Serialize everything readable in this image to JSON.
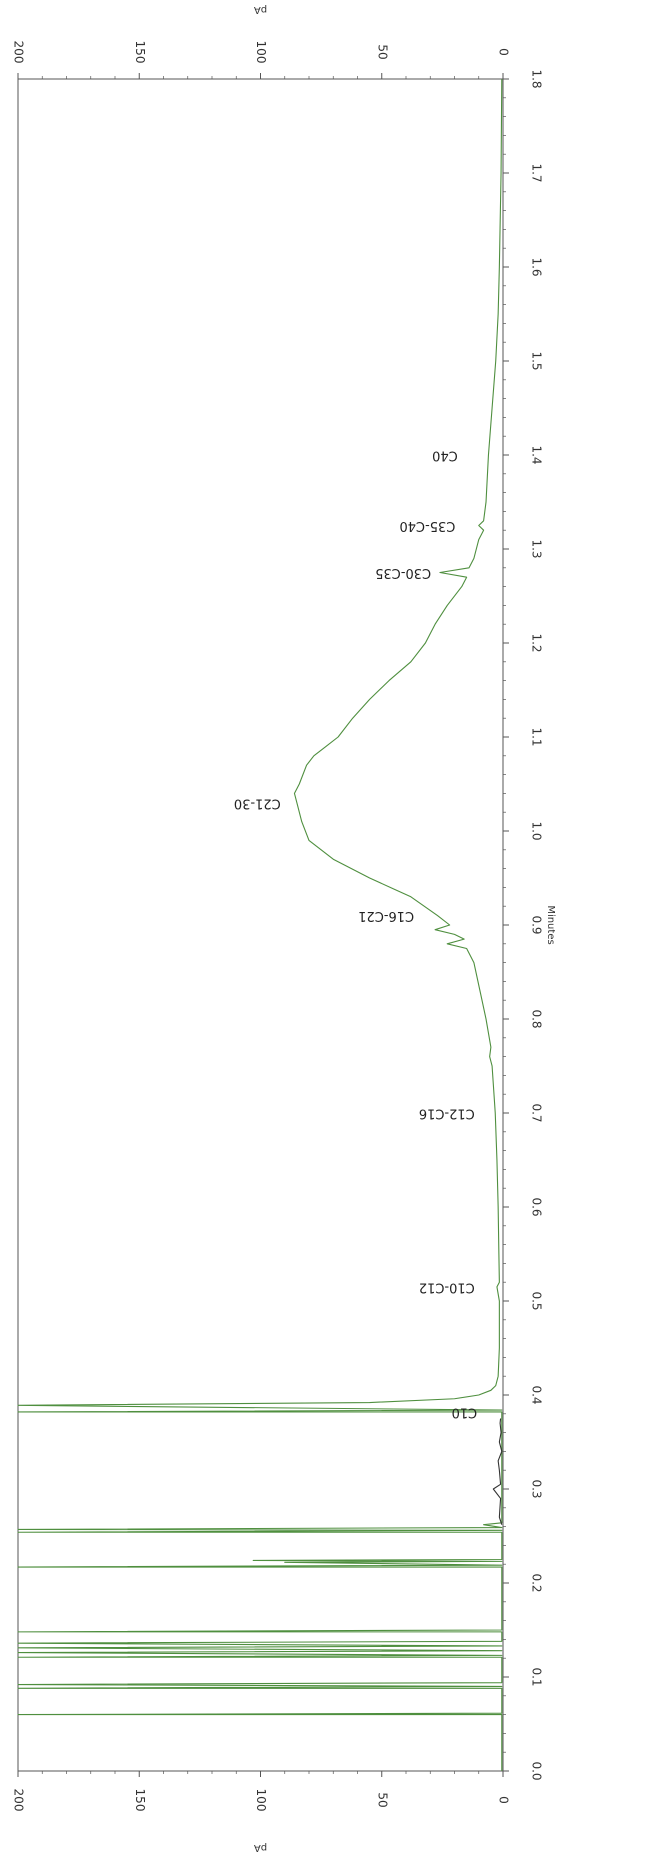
{
  "chart_data": {
    "type": "line",
    "orientation": "rotated-90-clockwise",
    "xlabel": "Minutes",
    "ylabel": "pA",
    "xlim": [
      0.0,
      1.8
    ],
    "ylim": [
      0,
      200
    ],
    "x_ticks": [
      "0.0",
      "0.1",
      "0.2",
      "0.3",
      "0.4",
      "0.5",
      "0.6",
      "0.7",
      "0.8",
      "0.9",
      "1.0",
      "1.1",
      "1.2",
      "1.3",
      "1.4",
      "1.5",
      "1.6",
      "1.7",
      "1.8"
    ],
    "y_ticks": [
      "0",
      "50",
      "100",
      "150",
      "200"
    ],
    "grid": false,
    "colors": {
      "trace": "#4f8f3f",
      "baseline": "#333333",
      "axis": "#555555"
    },
    "series": [
      {
        "color": "#4f8f3f",
        "points": [
          [
            0.0,
            0.5
          ],
          [
            0.06,
            0.5
          ],
          [
            0.06,
            200
          ],
          [
            0.0615,
            0.5
          ],
          [
            0.088,
            0.5
          ],
          [
            0.088,
            200
          ],
          [
            0.09,
            0.5
          ],
          [
            0.092,
            200
          ],
          [
            0.094,
            0.5
          ],
          [
            0.121,
            0.5
          ],
          [
            0.121,
            200
          ],
          [
            0.123,
            0.5
          ],
          [
            0.126,
            200
          ],
          [
            0.128,
            0.5
          ],
          [
            0.131,
            200
          ],
          [
            0.133,
            0.5
          ],
          [
            0.136,
            200
          ],
          [
            0.138,
            0.5
          ],
          [
            0.148,
            0.5
          ],
          [
            0.148,
            200
          ],
          [
            0.15,
            0.5
          ],
          [
            0.217,
            0.5
          ],
          [
            0.217,
            200
          ],
          [
            0.219,
            0.5
          ],
          [
            0.222,
            90
          ],
          [
            0.223,
            0.5
          ],
          [
            0.224,
            103
          ],
          [
            0.225,
            0.5
          ],
          [
            0.254,
            0.5
          ],
          [
            0.254,
            200
          ],
          [
            0.256,
            0.5
          ],
          [
            0.257,
            200
          ],
          [
            0.259,
            0.5
          ],
          [
            0.262,
            8
          ],
          [
            0.264,
            0.5
          ],
          [
            0.382,
            0.5
          ],
          [
            0.382,
            200
          ],
          [
            0.384,
            0.5
          ],
          [
            0.389,
            200
          ],
          [
            0.392,
            55
          ],
          [
            0.396,
            20
          ],
          [
            0.4,
            10
          ],
          [
            0.405,
            5
          ],
          [
            0.41,
            3
          ],
          [
            0.42,
            2
          ],
          [
            0.45,
            1.5
          ],
          [
            0.5,
            1.5
          ],
          [
            0.515,
            2.5
          ],
          [
            0.52,
            1.5
          ],
          [
            0.55,
            1.7
          ],
          [
            0.6,
            2
          ],
          [
            0.65,
            2.5
          ],
          [
            0.7,
            3.2
          ],
          [
            0.75,
            4.5
          ],
          [
            0.76,
            5.5
          ],
          [
            0.77,
            5
          ],
          [
            0.8,
            7
          ],
          [
            0.83,
            9.5
          ],
          [
            0.86,
            12
          ],
          [
            0.875,
            15
          ],
          [
            0.88,
            23
          ],
          [
            0.885,
            16
          ],
          [
            0.89,
            20
          ],
          [
            0.895,
            28
          ],
          [
            0.9,
            22
          ],
          [
            0.91,
            27
          ],
          [
            0.93,
            38
          ],
          [
            0.95,
            55
          ],
          [
            0.97,
            70
          ],
          [
            0.99,
            80
          ],
          [
            1.01,
            83
          ],
          [
            1.03,
            85
          ],
          [
            1.04,
            86
          ],
          [
            1.05,
            84
          ],
          [
            1.07,
            81
          ],
          [
            1.08,
            78
          ],
          [
            1.09,
            73
          ],
          [
            1.1,
            68
          ],
          [
            1.12,
            62
          ],
          [
            1.14,
            55
          ],
          [
            1.16,
            47
          ],
          [
            1.18,
            38
          ],
          [
            1.2,
            32
          ],
          [
            1.22,
            28
          ],
          [
            1.24,
            23
          ],
          [
            1.26,
            17
          ],
          [
            1.27,
            15
          ],
          [
            1.275,
            26
          ],
          [
            1.28,
            14
          ],
          [
            1.29,
            12
          ],
          [
            1.3,
            11
          ],
          [
            1.31,
            10
          ],
          [
            1.32,
            8
          ],
          [
            1.325,
            10
          ],
          [
            1.33,
            8
          ],
          [
            1.35,
            7
          ],
          [
            1.4,
            6
          ],
          [
            1.45,
            4.5
          ],
          [
            1.5,
            3
          ],
          [
            1.55,
            2
          ],
          [
            1.6,
            1.5
          ],
          [
            1.7,
            0.8
          ],
          [
            1.8,
            0.5
          ]
        ]
      },
      {
        "color": "#333333",
        "points": [
          [
            0.262,
            0.5
          ],
          [
            0.27,
            1.5
          ],
          [
            0.29,
            1
          ],
          [
            0.3,
            4
          ],
          [
            0.305,
            1
          ],
          [
            0.32,
            1.5
          ],
          [
            0.33,
            2
          ],
          [
            0.34,
            0.5
          ],
          [
            0.35,
            1.5
          ],
          [
            0.36,
            0.8
          ],
          [
            0.37,
            1.2
          ],
          [
            0.375,
            1
          ]
        ]
      }
    ],
    "annotations": [
      {
        "text": "C10",
        "x": 0.382,
        "y": 9
      },
      {
        "text": "C10-C12",
        "x": 0.515,
        "y": 10
      },
      {
        "text": "C12-C16",
        "x": 0.7,
        "y": 10
      },
      {
        "text": "C16-C21",
        "x": 0.91,
        "y": 35
      },
      {
        "text": "C21-30",
        "x": 1.03,
        "y": 90
      },
      {
        "text": "C30-C35",
        "x": 1.275,
        "y": 28
      },
      {
        "text": "C35-C40",
        "x": 1.325,
        "y": 18
      },
      {
        "text": "C40",
        "x": 1.4,
        "y": 17
      }
    ]
  }
}
